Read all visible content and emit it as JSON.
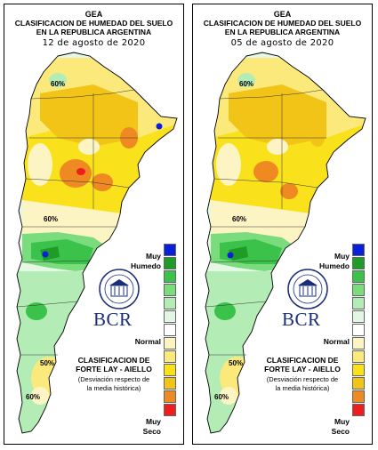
{
  "organization": "GEA",
  "title_line1": "CLASIFICACION DE HUMEDAD DEL SUELO",
  "title_line2": "EN LA REPUBLICA ARGENTINA",
  "panels": [
    {
      "date": "12 de agosto de 2020"
    },
    {
      "date": "05 de agosto de 2020"
    }
  ],
  "legend": {
    "top_label_1": "Muy",
    "top_label_2": "Humedo",
    "mid_label": "Normal",
    "bottom_label_1": "Muy",
    "bottom_label_2": "Seco",
    "colors": [
      "#0a1fd9",
      "#1f9b28",
      "#3bc24a",
      "#7bdc7d",
      "#b4ecb6",
      "#e1f7e4",
      "#ffffff",
      "#fdf4c4",
      "#fbe97c",
      "#f9e11c",
      "#f2c418",
      "#ef8a23",
      "#ef1e1e"
    ]
  },
  "brand": {
    "name": "BCR",
    "seal_text": "BOLSA DE COMERCIO DE ROSARIO"
  },
  "method": {
    "line1": "CLASIFICACION DE",
    "line2": "FORTE LAY - AIELLO",
    "line3": "(Desviación respecto de",
    "line4": "la media histórica)"
  },
  "map_annotations": [
    "60%",
    "60%",
    "50%",
    "60%"
  ]
}
